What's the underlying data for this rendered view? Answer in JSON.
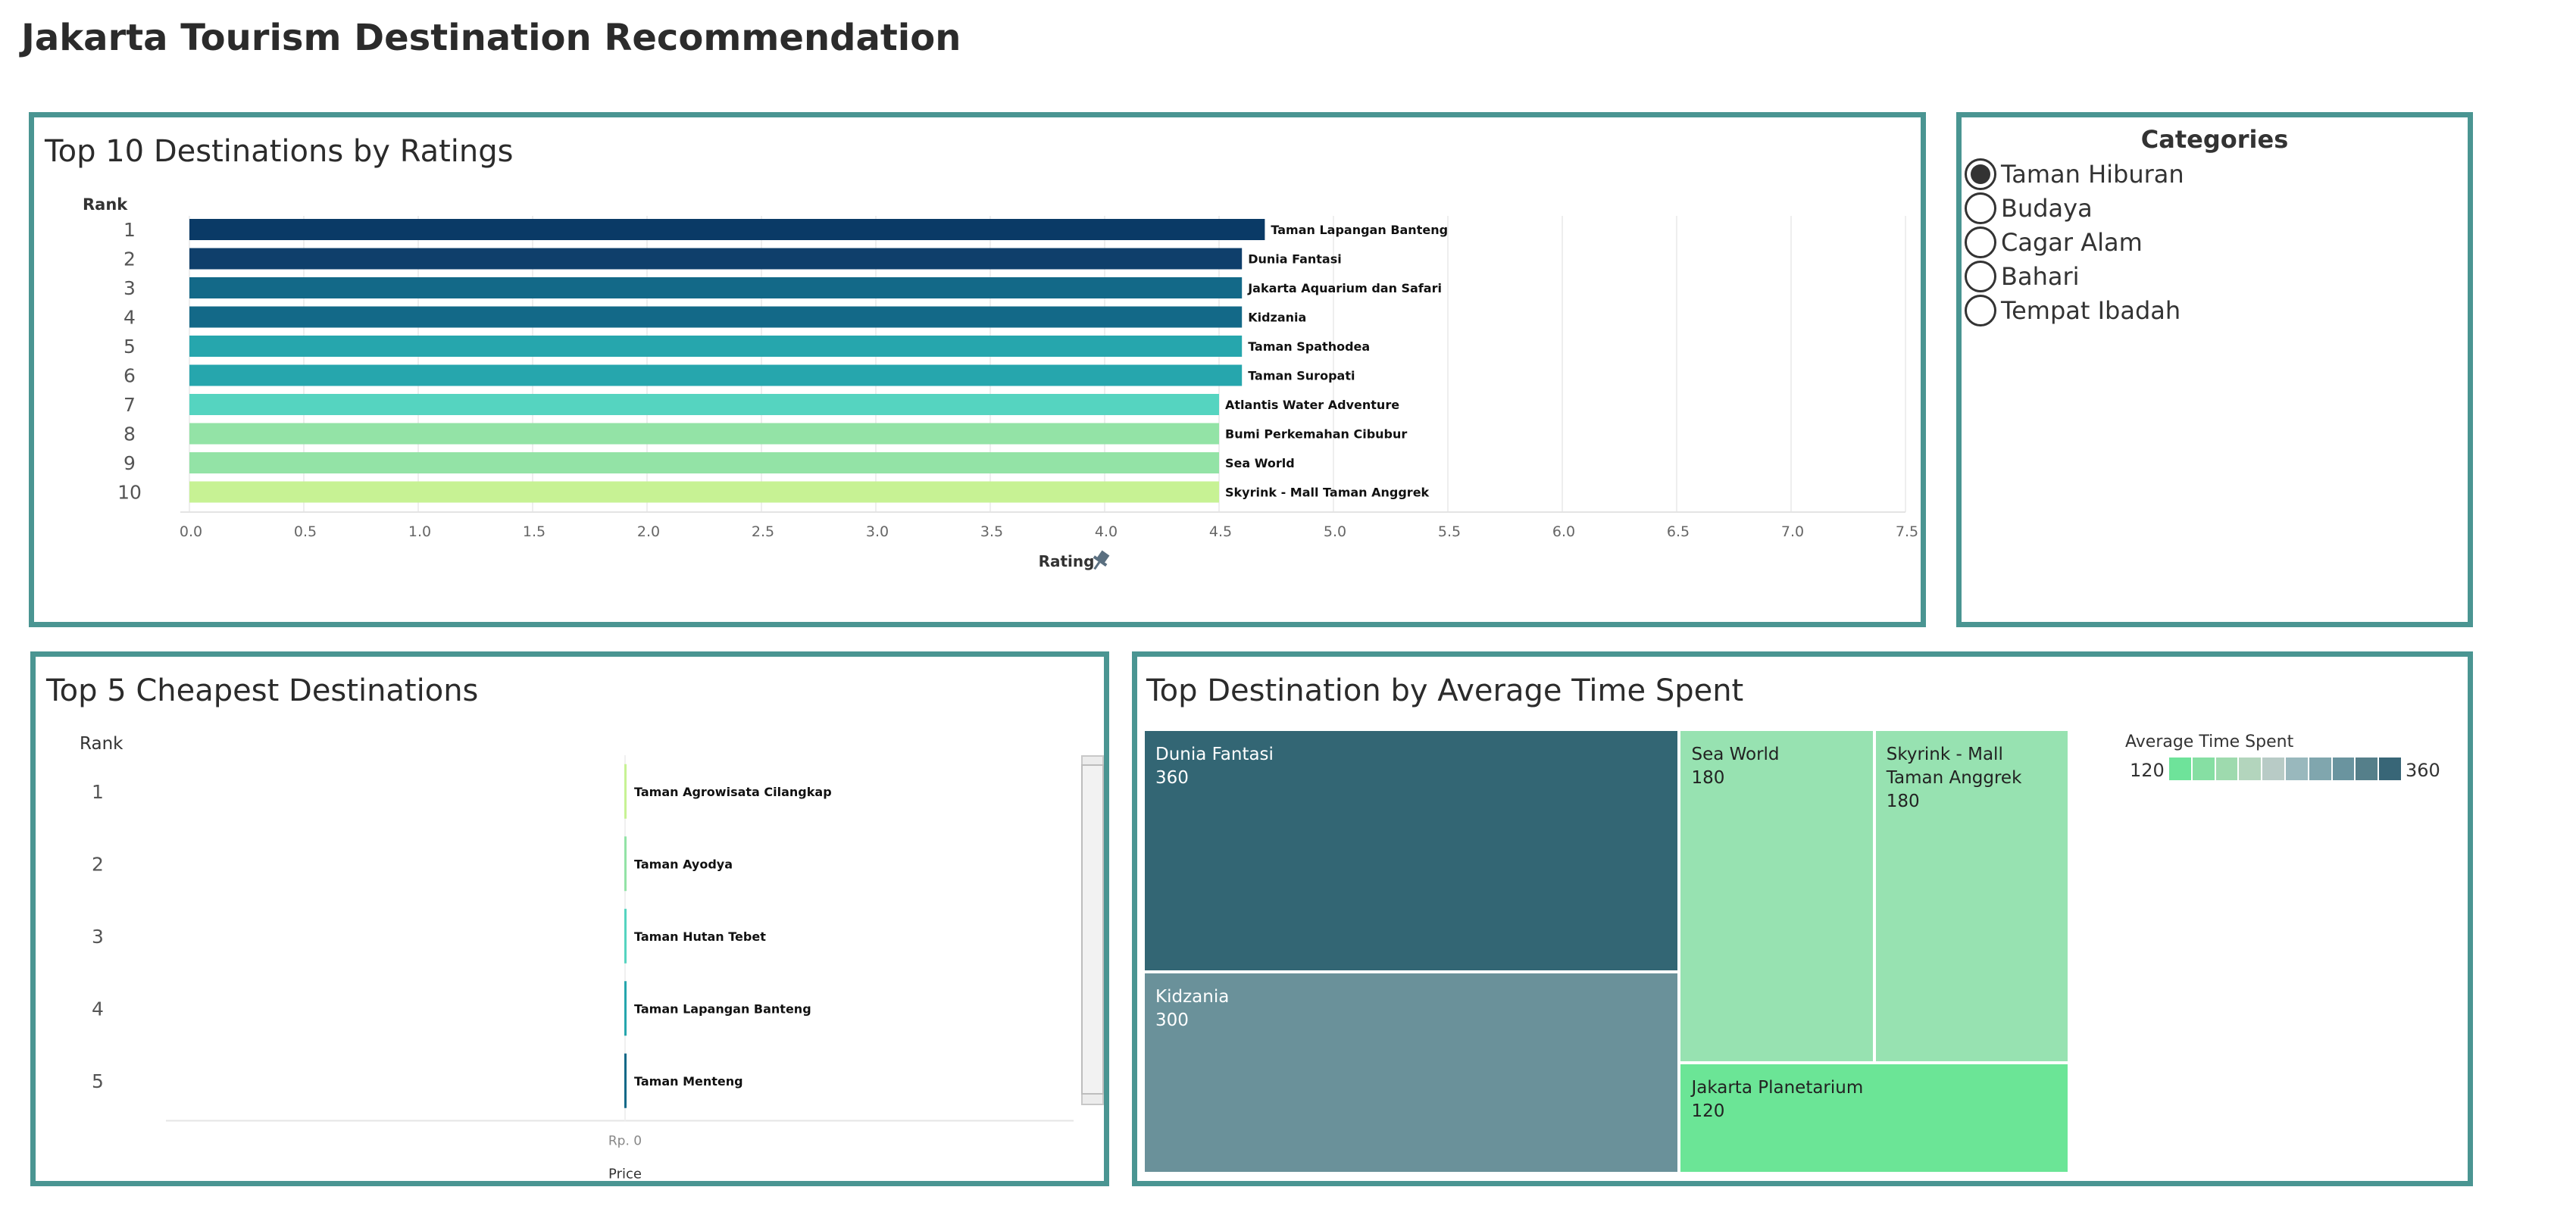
{
  "dashboard": {
    "title": "Jakarta Tourism Destination Recommendation"
  },
  "colors": {
    "panel_border": "#4a9592",
    "gridline": "#eeeeee"
  },
  "panels": {
    "ratings": {
      "title": "Top 10 Destinations by Ratings"
    },
    "categories": {
      "title": "Categories",
      "items": [
        {
          "label": "Taman Hiburan",
          "selected": true
        },
        {
          "label": "Budaya",
          "selected": false
        },
        {
          "label": "Cagar Alam",
          "selected": false
        },
        {
          "label": "Bahari",
          "selected": false
        },
        {
          "label": "Tempat Ibadah",
          "selected": false
        }
      ]
    },
    "cheapest": {
      "title": "Top 5 Cheapest Destinations"
    },
    "time": {
      "title": "Top Destination by Average Time Spent",
      "legend": {
        "title": "Average Time Spent",
        "min_label": "120",
        "max_label": "360",
        "colors": [
          "#6ee39a",
          "#86dfa3",
          "#9edaae",
          "#b3d5bd",
          "#b8cbc6",
          "#99b8bd",
          "#80a6ae",
          "#6a949f",
          "#557f8a",
          "#386677"
        ]
      }
    }
  },
  "chart_data": [
    {
      "type": "bar",
      "orientation": "horizontal",
      "title": "Top 10 Destinations by Ratings",
      "row_header": "Rank",
      "xlabel": "Rating",
      "xlim": [
        0,
        7.5
      ],
      "xticks": [
        "0.0",
        "0.5",
        "1.0",
        "1.5",
        "2.0",
        "2.5",
        "3.0",
        "3.5",
        "4.0",
        "4.5",
        "5.0",
        "5.5",
        "6.0",
        "6.5",
        "7.0",
        "7.5"
      ],
      "categories": [
        "1",
        "2",
        "3",
        "4",
        "5",
        "6",
        "7",
        "8",
        "9",
        "10"
      ],
      "labels": [
        "Taman Lapangan Banteng",
        "Dunia Fantasi",
        "Jakarta Aquarium dan Safari",
        "Kidzania",
        "Taman Spathodea",
        "Taman Suropati",
        "Atlantis Water Adventure",
        "Bumi Perkemahan Cibubur",
        "Sea World",
        "Skyrink - Mall Taman Anggrek"
      ],
      "values": [
        4.7,
        4.6,
        4.6,
        4.6,
        4.6,
        4.6,
        4.5,
        4.5,
        4.5,
        4.5
      ],
      "colors": [
        "#0a3a66",
        "#0f3f6b",
        "#136988",
        "#136988",
        "#26a6ad",
        "#26a6ad",
        "#55d4c0",
        "#93e3a6",
        "#93e3a6",
        "#c7f294"
      ],
      "grid": true
    },
    {
      "type": "bar",
      "orientation": "horizontal",
      "title": "Top 5 Cheapest Destinations",
      "row_header": "Rank",
      "xlabel": "Price",
      "xticks": [
        "Rp. 0"
      ],
      "categories": [
        "1",
        "2",
        "3",
        "4",
        "5"
      ],
      "labels": [
        "Taman Agrowisata Cilangkap",
        "Taman Ayodya",
        "Taman Hutan Tebet",
        "Taman Lapangan Banteng",
        "Taman Menteng"
      ],
      "values": [
        0,
        0,
        0,
        0,
        0
      ],
      "colors": [
        "#c7f294",
        "#93e3a6",
        "#55d4c0",
        "#26a6ad",
        "#136988"
      ]
    },
    {
      "type": "treemap",
      "title": "Top Destination by Average Time Spent",
      "items": [
        {
          "name": "Dunia Fantasi",
          "value": 360,
          "color": "#336674",
          "text_color": "#ffffff"
        },
        {
          "name": "Kidzania",
          "value": 300,
          "color": "#6a919a",
          "text_color": "#ffffff"
        },
        {
          "name": "Sea World",
          "value": 180,
          "color": "#97e2b1",
          "text_color": "#222222"
        },
        {
          "name": "Skyrink - Mall Taman Anggrek",
          "value": 180,
          "color": "#97e2b1",
          "text_color": "#222222"
        },
        {
          "name": "Jakarta Planetarium",
          "value": 120,
          "color": "#6be596",
          "text_color": "#222222"
        }
      ]
    }
  ]
}
